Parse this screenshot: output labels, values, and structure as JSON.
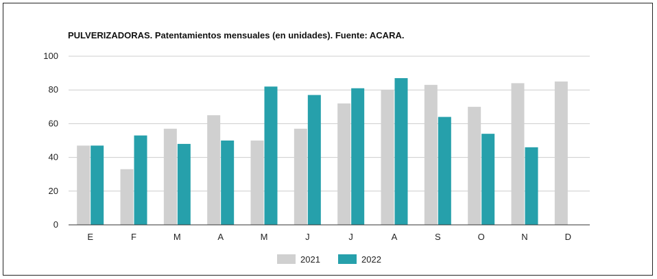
{
  "chart_data": {
    "type": "bar",
    "title": "PULVERIZADORAS. Patentamientos mensuales (en unidades). Fuente: ACARA.",
    "xlabel": "",
    "ylabel": "",
    "categories": [
      "E",
      "F",
      "M",
      "A",
      "M",
      "J",
      "J",
      "A",
      "S",
      "O",
      "N",
      "D"
    ],
    "series": [
      {
        "name": "2021",
        "color": "#d0d0d0",
        "values": [
          47,
          33,
          57,
          65,
          50,
          57,
          72,
          80,
          83,
          70,
          84,
          85
        ]
      },
      {
        "name": "2022",
        "color": "#26a0ab",
        "values": [
          47,
          53,
          48,
          50,
          82,
          77,
          81,
          87,
          64,
          54,
          46,
          null
        ]
      }
    ],
    "ylim": [
      0,
      100
    ],
    "yticks": [
      0,
      20,
      40,
      60,
      80,
      100
    ],
    "grid": true,
    "legend_position": "bottom"
  }
}
